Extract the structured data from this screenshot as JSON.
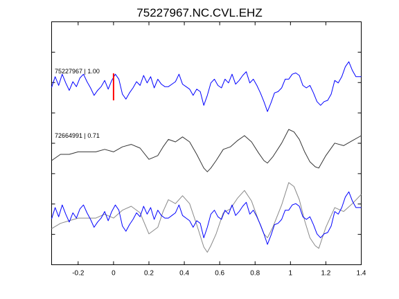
{
  "chart_data": {
    "type": "line",
    "title": "75227967.NC.CVL.EHZ",
    "xlabel": "",
    "ylabel": "",
    "xlim": [
      -0.35,
      1.4
    ],
    "xticks": [
      -0.2,
      0,
      0.2,
      0.4,
      0.6,
      0.8,
      1,
      1.2,
      1.4
    ],
    "xtick_labels": [
      "-0.2",
      "0",
      "0.2",
      "0.4",
      "0.6",
      "0.8",
      "1",
      "1.2",
      "1.4"
    ],
    "y_tick_count": 7,
    "grid": false,
    "pick_marker": {
      "x": 0,
      "color": "#ff0000"
    },
    "traces": [
      {
        "name": "75227967",
        "label": "75227967 | 1.00",
        "color": "#0000ff",
        "points": [
          [
            -0.35,
            0.02
          ],
          [
            -0.33,
            0.45
          ],
          [
            -0.31,
            0.1
          ],
          [
            -0.29,
            0.55
          ],
          [
            -0.27,
            0.2
          ],
          [
            -0.25,
            -0.1
          ],
          [
            -0.23,
            0.25
          ],
          [
            -0.21,
            0.05
          ],
          [
            -0.19,
            0.4
          ],
          [
            -0.17,
            0.55
          ],
          [
            -0.15,
            0.25
          ],
          [
            -0.13,
            0.0
          ],
          [
            -0.11,
            -0.3
          ],
          [
            -0.09,
            -0.1
          ],
          [
            -0.07,
            0.05
          ],
          [
            -0.05,
            0.3
          ],
          [
            -0.03,
            -0.05
          ],
          [
            -0.01,
            0.3
          ],
          [
            0.01,
            0.55
          ],
          [
            0.03,
            0.35
          ],
          [
            0.05,
            -0.25
          ],
          [
            0.07,
            -0.45
          ],
          [
            0.09,
            -0.2
          ],
          [
            0.11,
            0.0
          ],
          [
            0.13,
            0.25
          ],
          [
            0.15,
            0.1
          ],
          [
            0.17,
            0.5
          ],
          [
            0.19,
            0.2
          ],
          [
            0.21,
            0.45
          ],
          [
            0.23,
            0.0
          ],
          [
            0.25,
            0.35
          ],
          [
            0.27,
            0.15
          ],
          [
            0.29,
            0.05
          ],
          [
            0.31,
            0.05
          ],
          [
            0.33,
            0.15
          ],
          [
            0.35,
            0.25
          ],
          [
            0.37,
            0.55
          ],
          [
            0.39,
            0.15
          ],
          [
            0.41,
            0.05
          ],
          [
            0.43,
            -0.05
          ],
          [
            0.45,
            -0.3
          ],
          [
            0.47,
            -0.05
          ],
          [
            0.49,
            -0.15
          ],
          [
            0.51,
            -0.7
          ],
          [
            0.53,
            -0.3
          ],
          [
            0.55,
            0.2
          ],
          [
            0.57,
            0.35
          ],
          [
            0.59,
            0.1
          ],
          [
            0.61,
            0.0
          ],
          [
            0.63,
            0.35
          ],
          [
            0.65,
            0.2
          ],
          [
            0.67,
            0.55
          ],
          [
            0.69,
            0.15
          ],
          [
            0.71,
            0.3
          ],
          [
            0.73,
            0.5
          ],
          [
            0.75,
            0.65
          ],
          [
            0.77,
            0.2
          ],
          [
            0.79,
            0.35
          ],
          [
            0.81,
            0.1
          ],
          [
            0.83,
            -0.2
          ],
          [
            0.85,
            -0.55
          ],
          [
            0.87,
            -0.95
          ],
          [
            0.89,
            -0.6
          ],
          [
            0.91,
            -0.2
          ],
          [
            0.93,
            -0.15
          ],
          [
            0.95,
            0.0
          ],
          [
            0.97,
            0.35
          ],
          [
            0.99,
            0.35
          ],
          [
            1.01,
            0.55
          ],
          [
            1.03,
            0.6
          ],
          [
            1.05,
            0.5
          ],
          [
            1.07,
            0.1
          ],
          [
            1.09,
            0.0
          ],
          [
            1.11,
            0.1
          ],
          [
            1.13,
            -0.2
          ],
          [
            1.15,
            -0.55
          ],
          [
            1.17,
            -0.7
          ],
          [
            1.19,
            -0.55
          ],
          [
            1.21,
            -0.5
          ],
          [
            1.23,
            -0.25
          ],
          [
            1.25,
            0.3
          ],
          [
            1.27,
            0.2
          ],
          [
            1.29,
            0.45
          ],
          [
            1.31,
            0.85
          ],
          [
            1.33,
            1.05
          ],
          [
            1.35,
            0.7
          ],
          [
            1.37,
            0.45
          ],
          [
            1.4,
            0.45
          ]
        ]
      },
      {
        "name": "72664991",
        "label": "72664991 | 0.71",
        "color": "#333333",
        "points": [
          [
            -0.35,
            0.0
          ],
          [
            -0.3,
            0.25
          ],
          [
            -0.25,
            0.25
          ],
          [
            -0.2,
            0.35
          ],
          [
            -0.15,
            0.35
          ],
          [
            -0.1,
            0.35
          ],
          [
            -0.05,
            0.45
          ],
          [
            0.0,
            0.35
          ],
          [
            0.05,
            0.55
          ],
          [
            0.1,
            0.65
          ],
          [
            0.15,
            0.5
          ],
          [
            0.2,
            0.05
          ],
          [
            0.25,
            0.2
          ],
          [
            0.28,
            0.55
          ],
          [
            0.31,
            0.85
          ],
          [
            0.35,
            0.75
          ],
          [
            0.39,
            0.95
          ],
          [
            0.43,
            0.75
          ],
          [
            0.47,
            0.25
          ],
          [
            0.51,
            -0.3
          ],
          [
            0.53,
            -0.45
          ],
          [
            0.55,
            -0.3
          ],
          [
            0.58,
            0.0
          ],
          [
            0.62,
            0.45
          ],
          [
            0.66,
            0.55
          ],
          [
            0.7,
            0.8
          ],
          [
            0.74,
            1.0
          ],
          [
            0.78,
            0.75
          ],
          [
            0.82,
            0.3
          ],
          [
            0.85,
            0.0
          ],
          [
            0.87,
            -0.1
          ],
          [
            0.9,
            0.15
          ],
          [
            0.95,
            0.7
          ],
          [
            0.99,
            1.25
          ],
          [
            1.02,
            1.15
          ],
          [
            1.05,
            0.85
          ],
          [
            1.08,
            0.35
          ],
          [
            1.11,
            -0.05
          ],
          [
            1.14,
            -0.25
          ],
          [
            1.16,
            -0.3
          ],
          [
            1.2,
            0.2
          ],
          [
            1.25,
            0.7
          ],
          [
            1.3,
            0.6
          ],
          [
            1.35,
            0.8
          ],
          [
            1.4,
            1.0
          ]
        ]
      },
      {
        "name": "75227967 overlay",
        "label": "",
        "color": "#0000ff",
        "points": [
          [
            -0.35,
            0.02
          ],
          [
            -0.33,
            0.45
          ],
          [
            -0.31,
            0.1
          ],
          [
            -0.29,
            0.55
          ],
          [
            -0.27,
            0.2
          ],
          [
            -0.25,
            -0.1
          ],
          [
            -0.23,
            0.25
          ],
          [
            -0.21,
            0.05
          ],
          [
            -0.19,
            0.4
          ],
          [
            -0.17,
            0.55
          ],
          [
            -0.15,
            0.25
          ],
          [
            -0.13,
            0.0
          ],
          [
            -0.11,
            -0.3
          ],
          [
            -0.09,
            -0.1
          ],
          [
            -0.07,
            0.05
          ],
          [
            -0.05,
            0.3
          ],
          [
            -0.03,
            -0.05
          ],
          [
            -0.01,
            0.3
          ],
          [
            0.01,
            0.55
          ],
          [
            0.03,
            0.35
          ],
          [
            0.05,
            -0.25
          ],
          [
            0.07,
            -0.45
          ],
          [
            0.09,
            -0.2
          ],
          [
            0.11,
            0.0
          ],
          [
            0.13,
            0.25
          ],
          [
            0.15,
            0.1
          ],
          [
            0.17,
            0.5
          ],
          [
            0.19,
            0.2
          ],
          [
            0.21,
            0.45
          ],
          [
            0.23,
            0.0
          ],
          [
            0.25,
            0.35
          ],
          [
            0.27,
            0.15
          ],
          [
            0.29,
            0.05
          ],
          [
            0.31,
            0.05
          ],
          [
            0.33,
            0.15
          ],
          [
            0.35,
            0.25
          ],
          [
            0.37,
            0.55
          ],
          [
            0.39,
            0.15
          ],
          [
            0.41,
            0.05
          ],
          [
            0.43,
            -0.05
          ],
          [
            0.45,
            -0.3
          ],
          [
            0.47,
            -0.05
          ],
          [
            0.49,
            -0.15
          ],
          [
            0.51,
            -0.7
          ],
          [
            0.53,
            -0.3
          ],
          [
            0.55,
            0.2
          ],
          [
            0.57,
            0.35
          ],
          [
            0.59,
            0.1
          ],
          [
            0.61,
            0.0
          ],
          [
            0.63,
            0.35
          ],
          [
            0.65,
            0.2
          ],
          [
            0.67,
            0.55
          ],
          [
            0.69,
            0.15
          ],
          [
            0.71,
            0.3
          ],
          [
            0.73,
            0.5
          ],
          [
            0.75,
            0.65
          ],
          [
            0.77,
            0.2
          ],
          [
            0.79,
            0.35
          ],
          [
            0.81,
            0.1
          ],
          [
            0.83,
            -0.2
          ],
          [
            0.85,
            -0.55
          ],
          [
            0.87,
            -0.95
          ],
          [
            0.89,
            -0.6
          ],
          [
            0.91,
            -0.2
          ],
          [
            0.93,
            -0.15
          ],
          [
            0.95,
            0.0
          ],
          [
            0.97,
            0.35
          ],
          [
            0.99,
            0.35
          ],
          [
            1.01,
            0.55
          ],
          [
            1.03,
            0.6
          ],
          [
            1.05,
            0.5
          ],
          [
            1.07,
            0.1
          ],
          [
            1.09,
            0.0
          ],
          [
            1.11,
            0.1
          ],
          [
            1.13,
            -0.2
          ],
          [
            1.15,
            -0.55
          ],
          [
            1.17,
            -0.7
          ],
          [
            1.19,
            -0.55
          ],
          [
            1.21,
            -0.5
          ],
          [
            1.23,
            -0.25
          ],
          [
            1.25,
            0.3
          ],
          [
            1.27,
            0.2
          ],
          [
            1.29,
            0.45
          ],
          [
            1.31,
            0.85
          ],
          [
            1.33,
            1.05
          ],
          [
            1.35,
            0.7
          ],
          [
            1.37,
            0.45
          ],
          [
            1.4,
            0.45
          ]
        ]
      },
      {
        "name": "72664991 overlay",
        "label": "",
        "color": "#888888",
        "points": [
          [
            -0.35,
            -0.35
          ],
          [
            -0.3,
            -0.15
          ],
          [
            -0.25,
            -0.05
          ],
          [
            -0.2,
            0.05
          ],
          [
            -0.15,
            0.05
          ],
          [
            -0.1,
            0.05
          ],
          [
            -0.05,
            0.2
          ],
          [
            0.0,
            0.05
          ],
          [
            0.05,
            0.35
          ],
          [
            0.1,
            0.5
          ],
          [
            0.15,
            0.25
          ],
          [
            0.2,
            -0.55
          ],
          [
            0.25,
            -0.3
          ],
          [
            0.28,
            0.3
          ],
          [
            0.31,
            0.75
          ],
          [
            0.35,
            0.6
          ],
          [
            0.39,
            0.9
          ],
          [
            0.43,
            0.6
          ],
          [
            0.47,
            -0.2
          ],
          [
            0.51,
            -1.05
          ],
          [
            0.53,
            -1.25
          ],
          [
            0.55,
            -1.0
          ],
          [
            0.58,
            -0.55
          ],
          [
            0.62,
            0.25
          ],
          [
            0.66,
            0.4
          ],
          [
            0.7,
            0.8
          ],
          [
            0.74,
            1.1
          ],
          [
            0.78,
            0.7
          ],
          [
            0.82,
            -0.05
          ],
          [
            0.85,
            -0.55
          ],
          [
            0.87,
            -0.7
          ],
          [
            0.9,
            -0.3
          ],
          [
            0.95,
            0.55
          ],
          [
            0.99,
            1.4
          ],
          [
            1.02,
            1.25
          ],
          [
            1.05,
            0.75
          ],
          [
            1.08,
            -0.05
          ],
          [
            1.11,
            -0.7
          ],
          [
            1.14,
            -1.0
          ],
          [
            1.16,
            -1.1
          ],
          [
            1.2,
            -0.3
          ],
          [
            1.25,
            0.45
          ],
          [
            1.3,
            0.3
          ],
          [
            1.35,
            0.6
          ],
          [
            1.4,
            0.95
          ]
        ]
      }
    ]
  }
}
